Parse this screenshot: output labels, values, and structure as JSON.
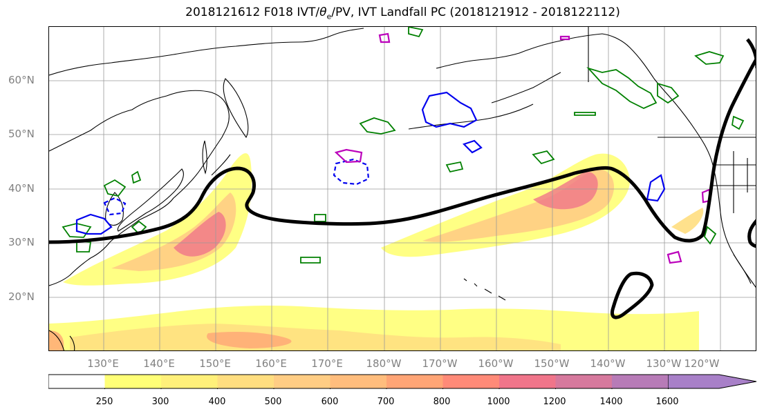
{
  "title": {
    "prefix": "2018121612 F018 IVT/",
    "theta": "θ",
    "theta_sub": "e",
    "suffix": "/PV, IVT Landfall PC (2018121912 - 2018122112)"
  },
  "axes": {
    "lat_labels": [
      "60°N",
      "50°N",
      "40°N",
      "30°N",
      "20°N"
    ],
    "lon_labels": [
      "130°E",
      "140°E",
      "150°E",
      "160°E",
      "170°E",
      "180°W",
      "170°W",
      "160°W",
      "150°W",
      "140°W",
      "130°W",
      "120°W"
    ]
  },
  "colorbar": {
    "ticks": [
      "250",
      "300",
      "400",
      "500",
      "600",
      "700",
      "800",
      "1000",
      "1200",
      "1400",
      "1600"
    ],
    "colors": [
      "#ffffff",
      "#ffff77",
      "#fff07a",
      "#ffde80",
      "#ffcd84",
      "#ffbd7d",
      "#ffa576",
      "#ff8a78",
      "#f0758a",
      "#d6799d",
      "#b77bb7",
      "#a880c8"
    ],
    "extend": "max"
  },
  "legend_colors": {
    "landfall_pc": "#000000",
    "pv_positive": "#0000ee",
    "pv_negative": "#bb00bb",
    "theta_e": "#008000"
  }
}
